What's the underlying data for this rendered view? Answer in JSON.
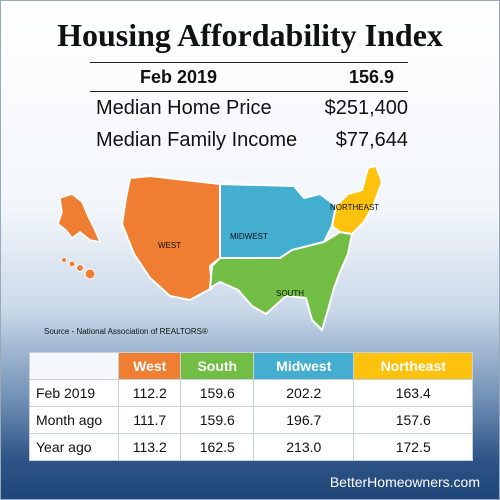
{
  "title": "Housing Affordability Index",
  "stats": {
    "header_label": "Feb 2019",
    "header_value": "156.9",
    "rows": [
      {
        "label": "Median Home Price",
        "value": "$251,400"
      },
      {
        "label": "Median Family Income",
        "value": "$77,644"
      }
    ]
  },
  "map": {
    "regions": [
      {
        "name": "WEST",
        "color": "#ef7d32"
      },
      {
        "name": "MIDWEST",
        "color": "#43aed0"
      },
      {
        "name": "SOUTH",
        "color": "#72bd43"
      },
      {
        "name": "NORTHEAST",
        "color": "#fdc20e"
      }
    ]
  },
  "source": "Source - National Association of REALTORS®",
  "table": {
    "columns": [
      {
        "label": "West",
        "color": "#ef7d32"
      },
      {
        "label": "South",
        "color": "#72bd43"
      },
      {
        "label": "Midwest",
        "color": "#43aed0"
      },
      {
        "label": "Northeast",
        "color": "#fdc20e"
      }
    ],
    "rows": [
      {
        "label": "Feb 2019",
        "values": [
          "112.2",
          "159.6",
          "202.2",
          "163.4"
        ]
      },
      {
        "label": "Month ago",
        "values": [
          "111.7",
          "159.6",
          "196.7",
          "157.6"
        ]
      },
      {
        "label": "Year ago",
        "values": [
          "113.2",
          "162.5",
          "213.0",
          "172.5"
        ]
      }
    ]
  },
  "footer": "BetterHomeowners.com"
}
